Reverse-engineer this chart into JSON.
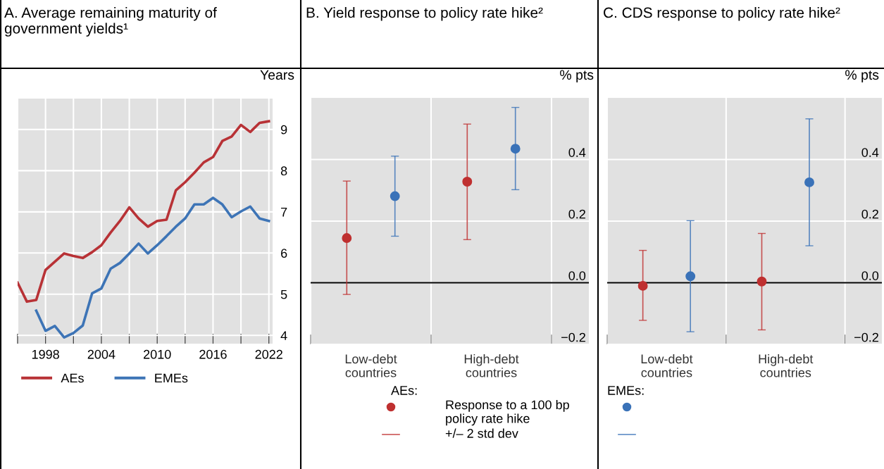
{
  "chart_data": [
    {
      "type": "line",
      "title": "A. Average remaining maturity of government yields¹",
      "ylabel": "Years",
      "x": [
        1995,
        1996,
        1997,
        1998,
        1999,
        2000,
        2001,
        2002,
        2003,
        2004,
        2005,
        2006,
        2007,
        2008,
        2009,
        2010,
        2011,
        2012,
        2013,
        2014,
        2015,
        2016,
        2017,
        2018,
        2019,
        2020,
        2021,
        2022
      ],
      "series": [
        {
          "name": "AEs",
          "color": "#b83236",
          "values": [
            5.28,
            4.82,
            4.86,
            5.59,
            5.79,
            5.99,
            5.93,
            5.88,
            6.02,
            6.19,
            6.5,
            6.78,
            7.11,
            6.84,
            6.64,
            6.78,
            6.81,
            7.52,
            7.72,
            7.95,
            8.2,
            8.33,
            8.72,
            8.83,
            9.11,
            8.94,
            9.16,
            9.2
          ]
        },
        {
          "name": "EMEs",
          "color": "#3d74b6",
          "values": [
            null,
            null,
            4.6,
            4.11,
            4.23,
            3.95,
            4.06,
            4.24,
            5.02,
            5.14,
            5.62,
            5.76,
            5.99,
            6.23,
            5.99,
            6.19,
            6.41,
            6.64,
            6.84,
            7.18,
            7.18,
            7.34,
            7.18,
            6.87,
            7.01,
            7.13,
            6.84,
            6.78
          ]
        }
      ],
      "xlim": [
        1995,
        2022.4
      ],
      "xticks": [
        {
          "value": 1995,
          "label": null
        },
        1998,
        {
          "value": 2001,
          "label": null
        },
        2004,
        {
          "value": 2007,
          "label": null
        },
        2010,
        {
          "value": 2013,
          "label": null
        },
        2016,
        {
          "value": 2019,
          "label": null
        },
        2022
      ],
      "ylim": [
        3.8,
        9.75
      ],
      "yticks": [
        4,
        5,
        6,
        7,
        8,
        9
      ],
      "grid": true,
      "legend": "bottom"
    },
    {
      "type": "scatter",
      "title": "B. Yield response to policy rate hike²",
      "ylabel": "% pts",
      "categories": [
        "Low-debt countries",
        "High-debt countries"
      ],
      "series": [
        {
          "color": "#bf3030",
          "values": [
            0.145,
            0.328
          ],
          "errors": [
            [
              -0.038,
              0.33
            ],
            [
              0.14,
              0.515
            ]
          ]
        },
        {
          "color": "#3a72b8",
          "values": [
            0.281,
            0.435
          ],
          "errors": [
            [
              0.151,
              0.411
            ],
            [
              0.302,
              0.569
            ]
          ]
        }
      ],
      "ylim": [
        -0.2,
        0.6
      ],
      "yticks": [
        {
          "value": -0.2,
          "label": "−0.2"
        },
        {
          "value": 0.0,
          "label": "0.0"
        },
        {
          "value": 0.2,
          "label": "0.2"
        },
        {
          "value": 0.4,
          "label": "0.4"
        }
      ],
      "ref_lines": [
        {
          "axis": "y",
          "value": 0,
          "color": "#000000"
        }
      ],
      "grid": true,
      "marker": "circle",
      "annotations": [
        "AEs:",
        "Response to a 100 bp policy rate hike",
        "+/– 2 std dev"
      ]
    },
    {
      "type": "scatter",
      "title": "C. CDS response to policy rate hike²",
      "ylabel": "% pts",
      "categories": [
        "Low-debt countries",
        "High-debt countries"
      ],
      "series": [
        {
          "color": "#bf3030",
          "values": [
            -0.01,
            0.004
          ],
          "errors": [
            [
              -0.122,
              0.105
            ],
            [
              -0.153,
              0.16
            ]
          ]
        },
        {
          "color": "#3a72b8",
          "values": [
            0.021,
            0.326
          ],
          "errors": [
            [
              -0.159,
              0.2015
            ],
            [
              0.12,
              0.532
            ]
          ]
        }
      ],
      "ylim": [
        -0.2,
        0.6
      ],
      "yticks": [
        {
          "value": -0.2,
          "label": "−0.2"
        },
        {
          "value": 0.0,
          "label": "0.0"
        },
        {
          "value": 0.2,
          "label": "0.2"
        },
        {
          "value": 0.4,
          "label": "0.4"
        }
      ],
      "ref_lines": [
        {
          "axis": "y",
          "value": 0,
          "color": "#000000"
        }
      ],
      "grid": true,
      "marker": "circle",
      "annotations": [
        "EMEs:"
      ]
    }
  ]
}
